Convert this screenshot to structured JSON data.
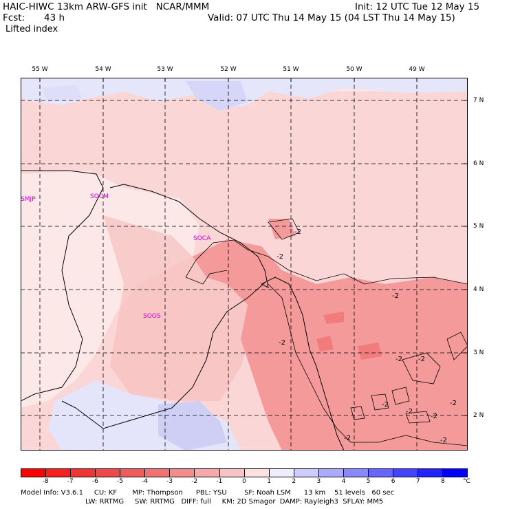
{
  "header": {
    "model_title": "HAIC-HIWC 13km ARW-GFS init   NCAR/MMM",
    "forecast_label": "Fcst:",
    "forecast_value": "43 h",
    "field_name": "Lifted index",
    "init_time": "Init: 12 UTC Tue 12 May 15",
    "valid_time": "Valid: 07 UTC Thu 14 May 15 (04 LST Thu 14 May 15)"
  },
  "axes": {
    "longitudes": [
      "55 W",
      "54 W",
      "53 W",
      "52 W",
      "51 W",
      "50 W",
      "49 W"
    ],
    "latitudes": [
      "7 N",
      "6 N",
      "5 N",
      "4 N",
      "3 N",
      "2 N"
    ]
  },
  "stations": [
    "SMJP",
    "SOCM",
    "SOCA",
    "SOOS"
  ],
  "contour_labels": [
    "-2",
    "-2",
    "-2",
    "-2",
    "-2",
    "-2",
    "-2",
    "-2",
    "-2",
    "-2",
    "-2",
    "-2"
  ],
  "colorbar": {
    "ticks": [
      "-8",
      "-7",
      "-6",
      "-5",
      "-4",
      "-3",
      "-2",
      "-1",
      "0",
      "1",
      "2",
      "3",
      "4",
      "5",
      "6",
      "7",
      "8"
    ],
    "unit": "°C",
    "colors": [
      "#ff0000",
      "#f62020",
      "#ef3434",
      "#ee4848",
      "#f05c5c",
      "#f27272",
      "#f58c8c",
      "#f7a8a8",
      "#fac4c4",
      "#fde0e0",
      "#eeeeff",
      "#ccccff",
      "#aaaaff",
      "#8888ff",
      "#6666ff",
      "#4444ff",
      "#2222ff",
      "#0000ff"
    ]
  },
  "model_info": {
    "line1": "Model Info: V3.6.1     CU: KF       MP: Thompson      PBL: YSU        SF: Noah LSM      13 km    51 levels   60 sec",
    "line2": "LW: RRTMG     SW: RRTMG   DIFF: full     KM: 2D Smagor  DAMP: Rayleigh3  SFLAY: MM5"
  }
}
